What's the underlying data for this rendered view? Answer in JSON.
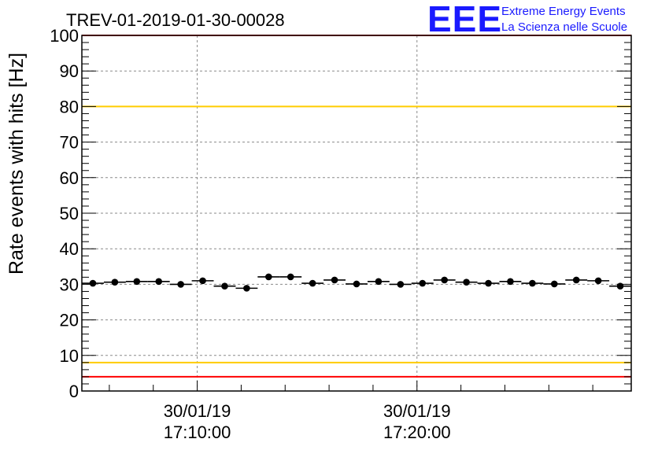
{
  "chart_data": {
    "type": "scatter",
    "title": "TREV-01-2019-01-30-00028",
    "ylabel": "Rate events with hits [Hz]",
    "xlabel": "",
    "ylim": [
      0,
      100
    ],
    "yticks": [
      "0",
      "10",
      "20",
      "30",
      "40",
      "50",
      "60",
      "70",
      "80",
      "90",
      "100"
    ],
    "xlim_minutes": [
      -5.25,
      19.75
    ],
    "xticks": [
      {
        "minute": 0,
        "date": "30/01/19",
        "time": "17:10:00"
      },
      {
        "minute": 10,
        "date": "30/01/19",
        "time": "17:20:00"
      }
    ],
    "grid": true,
    "series": [
      {
        "name": "rate",
        "bin_width_minutes": 1,
        "x_minutes": [
          -4.75,
          -3.75,
          -2.75,
          -1.75,
          -0.75,
          0.25,
          1.25,
          2.25,
          3.25,
          4.25,
          5.25,
          6.25,
          7.25,
          8.25,
          9.25,
          10.25,
          11.25,
          12.25,
          13.25,
          14.25,
          15.25,
          16.25,
          17.25,
          18.25,
          19.25
        ],
        "values": [
          30.3,
          30.6,
          30.8,
          30.8,
          30.0,
          31.0,
          29.5,
          28.9,
          32.1,
          32.1,
          30.3,
          31.2,
          30.1,
          30.8,
          30.0,
          30.3,
          31.2,
          30.6,
          30.3,
          30.8,
          30.3,
          30.1,
          31.2,
          31.0,
          29.5
        ]
      }
    ],
    "reference_lines": [
      {
        "y": 100,
        "color": "#ff0000"
      },
      {
        "y": 80,
        "color": "#ffcc00"
      },
      {
        "y": 8,
        "color": "#ffcc00"
      },
      {
        "y": 4,
        "color": "#ff0000"
      }
    ]
  },
  "logo": {
    "mark": "EEE",
    "line1": "Extreme Energy Events",
    "line2": "La Scienza nelle Scuole",
    "color": "#1a1aff"
  }
}
